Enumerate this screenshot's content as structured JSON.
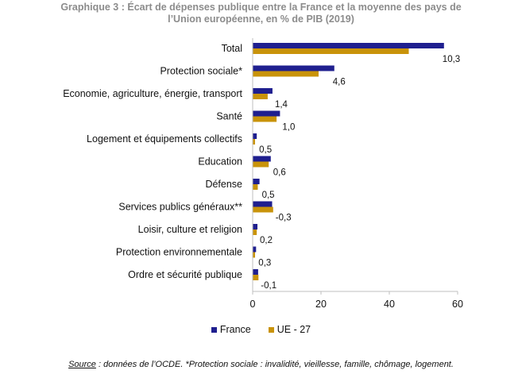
{
  "chart_data": {
    "type": "bar",
    "orientation": "horizontal",
    "title_line1": "Graphique 3 : Écart de dépenses publique entre la France et la moyenne des pays de",
    "title_line2": "l’Union européenne, en % de PIB (2019)",
    "categories": [
      "Total",
      "Protection sociale*",
      "Economie, agriculture, énergie, transport",
      "Santé",
      "Logement et équipements collectifs",
      "Education",
      "Défense",
      "Services publics généraux**",
      "Loisir, culture et religion",
      "Protection environnementale",
      "Ordre et sécurité publique"
    ],
    "series": [
      {
        "name": "France",
        "color": "#1f1f8f",
        "values": [
          56.0,
          23.9,
          5.8,
          8.0,
          1.2,
          5.3,
          2.0,
          5.7,
          1.4,
          1.0,
          1.6
        ]
      },
      {
        "name": "UE - 27",
        "color": "#c9930a",
        "values": [
          45.7,
          19.3,
          4.4,
          7.0,
          0.7,
          4.7,
          1.5,
          6.0,
          1.2,
          0.7,
          1.7
        ]
      }
    ],
    "gap_labels": [
      "10,3",
      "4,6",
      "1,4",
      "1,0",
      "0,5",
      "0,6",
      "0,5",
      "-0,3",
      "0,2",
      "0,3",
      "-0,1"
    ],
    "xlim": [
      0,
      60
    ],
    "xticks": [
      "0",
      "20",
      "40",
      "60"
    ],
    "xtick_values": [
      0,
      20,
      40,
      60
    ],
    "grid": false,
    "legend_position": "bottom"
  },
  "source": {
    "key": "Source",
    "text": " : données de l’OCDE. *Protection sociale : invalidité, vieillesse, famille, chômage, logement."
  }
}
